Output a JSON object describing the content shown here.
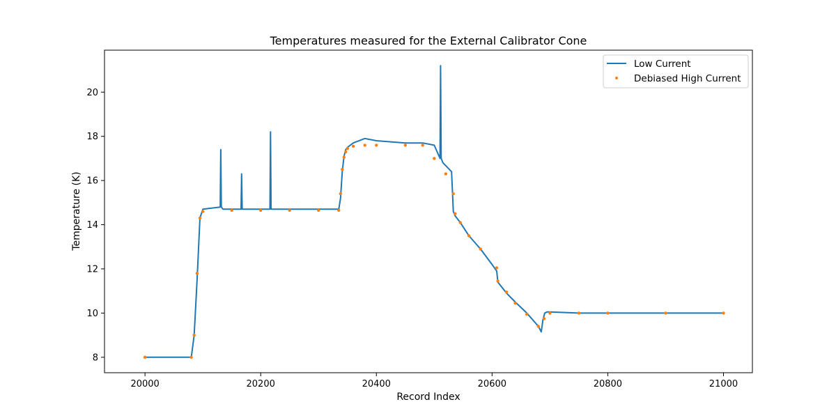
{
  "chart_data": {
    "type": "line",
    "title": "Temperatures measured for the External Calibrator Cone",
    "xlabel": "Record Index",
    "ylabel": "Temperature (K)",
    "xlim": [
      19930,
      21050
    ],
    "ylim": [
      7.3,
      21.9
    ],
    "xticks": [
      20000,
      20200,
      20400,
      20600,
      20800,
      21000
    ],
    "yticks": [
      8,
      10,
      12,
      14,
      16,
      18,
      20
    ],
    "grid": false,
    "legend_position": "top-right",
    "series": [
      {
        "name": "Low Current",
        "style": "line",
        "color": "#1f77b4",
        "x": [
          20000,
          20080,
          20085,
          20090,
          20095,
          20100,
          20130,
          20131,
          20132,
          20135,
          20166,
          20167,
          20168,
          20170,
          20216,
          20217,
          20218,
          20220,
          20280,
          20300,
          20335,
          20338,
          20341,
          20344,
          20347,
          20350,
          20360,
          20380,
          20400,
          20450,
          20480,
          20500,
          20510,
          20511,
          20512,
          20515,
          20530,
          20533,
          20536,
          20545,
          20560,
          20580,
          20600,
          20608,
          20610,
          20625,
          20640,
          20660,
          20680,
          20685,
          20688,
          20691,
          20695,
          20700,
          20750,
          20800,
          20900,
          21000
        ],
        "y": [
          8.0,
          8.0,
          9.0,
          11.5,
          14.3,
          14.7,
          14.8,
          17.4,
          14.8,
          14.7,
          14.7,
          16.3,
          14.7,
          14.7,
          14.7,
          18.2,
          14.7,
          14.7,
          14.7,
          14.7,
          14.7,
          15.2,
          16.4,
          17.1,
          17.4,
          17.5,
          17.7,
          17.9,
          17.8,
          17.7,
          17.7,
          17.6,
          17.0,
          21.2,
          17.0,
          16.8,
          16.4,
          14.6,
          14.4,
          14.1,
          13.5,
          12.9,
          12.2,
          11.9,
          11.4,
          10.9,
          10.5,
          10.0,
          9.4,
          9.15,
          9.7,
          10.0,
          10.05,
          10.05,
          10.0,
          10.0,
          10.0,
          10.0
        ]
      },
      {
        "name": "Debiased High Current",
        "style": "scatter",
        "color": "#ff7f0e",
        "x": [
          20000,
          20080,
          20085,
          20090,
          20095,
          20100,
          20150,
          20200,
          20250,
          20300,
          20335,
          20338,
          20341,
          20344,
          20347,
          20350,
          20360,
          20380,
          20400,
          20450,
          20480,
          20500,
          20520,
          20533,
          20536,
          20545,
          20560,
          20580,
          20608,
          20610,
          20625,
          20640,
          20660,
          20680,
          20690,
          20700,
          20750,
          20800,
          20900,
          21000
        ],
        "y": [
          8.0,
          8.0,
          9.0,
          11.8,
          14.3,
          14.6,
          14.65,
          14.65,
          14.65,
          14.65,
          14.65,
          15.4,
          16.5,
          17.05,
          17.3,
          17.45,
          17.55,
          17.6,
          17.6,
          17.6,
          17.6,
          17.0,
          16.3,
          15.4,
          14.5,
          14.1,
          13.5,
          12.9,
          12.05,
          11.45,
          10.95,
          10.45,
          9.95,
          9.4,
          9.75,
          10.0,
          10.0,
          10.0,
          10.0,
          10.0
        ]
      }
    ]
  }
}
